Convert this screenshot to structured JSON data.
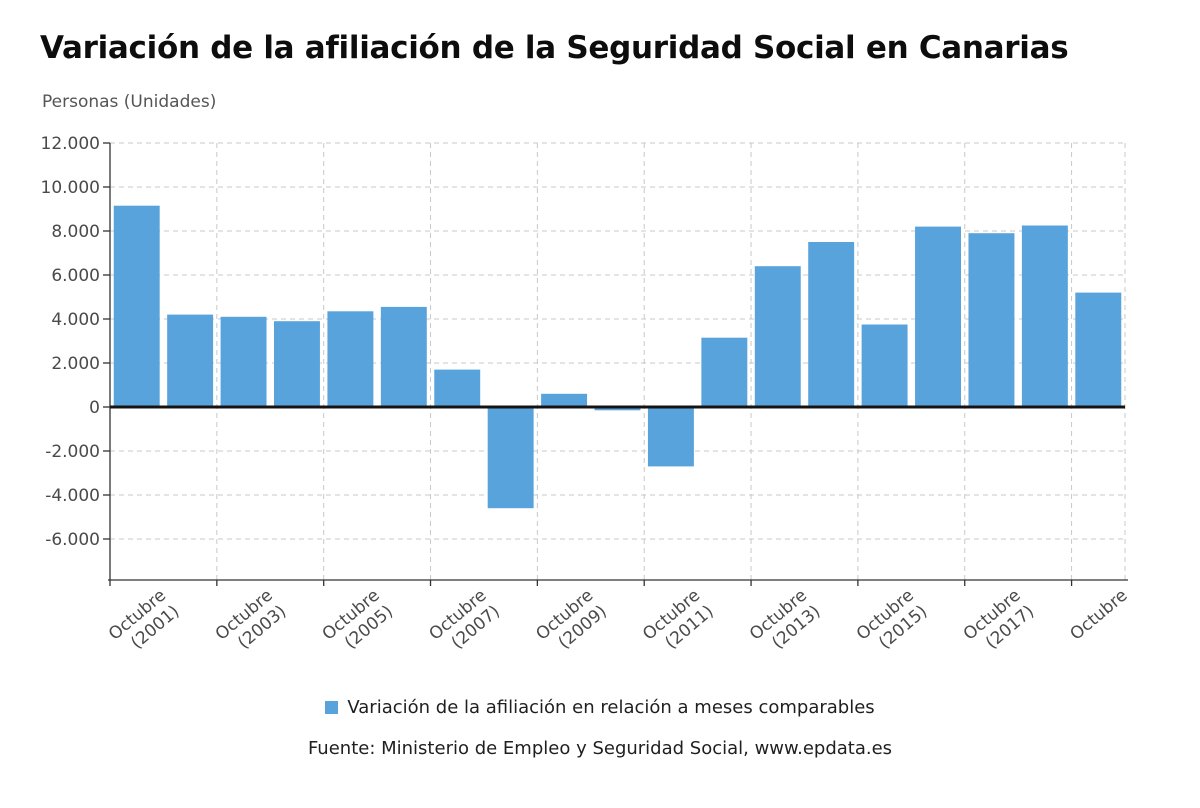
{
  "chart_data": {
    "type": "bar",
    "title": "Variación de la afiliación de la Seguridad Social en Canarias",
    "ylabel": "Personas (Unidades)",
    "legend": "Variación de la afiliación en relación a meses comparables",
    "source": "Fuente: Ministerio de Empleo y Seguridad Social, www.epdata.es",
    "bar_color": "#58a3dc",
    "grid": true,
    "legend_position": "bottom-center",
    "ylim": [
      -7800,
      12000
    ],
    "y_ticks": [
      12000,
      10000,
      8000,
      6000,
      4000,
      2000,
      0,
      -2000,
      -4000,
      -6000
    ],
    "y_tick_labels": [
      "12.000",
      "10.000",
      "8.000",
      "6.000",
      "4.000",
      "2.000",
      "0",
      "-2.000",
      "-4.000",
      "-6.000"
    ],
    "values": [
      9150,
      4200,
      4100,
      3900,
      4350,
      4550,
      1700,
      -4600,
      600,
      -150,
      -2700,
      3150,
      6400,
      7500,
      3750,
      8200,
      7900,
      8250,
      5200
    ],
    "x_tick_labels": [
      {
        "bar_index": 0,
        "lines": [
          "Octubre",
          "(2001)"
        ]
      },
      {
        "bar_index": 2,
        "lines": [
          "Octubre",
          "(2003)"
        ]
      },
      {
        "bar_index": 4,
        "lines": [
          "Octubre",
          "(2005)"
        ]
      },
      {
        "bar_index": 6,
        "lines": [
          "Octubre",
          "(2007)"
        ]
      },
      {
        "bar_index": 8,
        "lines": [
          "Octubre",
          "(2009)"
        ]
      },
      {
        "bar_index": 10,
        "lines": [
          "Octubre",
          "(2011)"
        ]
      },
      {
        "bar_index": 12,
        "lines": [
          "Octubre",
          "(2013)"
        ]
      },
      {
        "bar_index": 14,
        "lines": [
          "Octubre",
          "(2015)"
        ]
      },
      {
        "bar_index": 16,
        "lines": [
          "Octubre",
          "(2017)"
        ]
      },
      {
        "bar_index": 18,
        "lines": [
          "Octubre"
        ]
      }
    ]
  }
}
